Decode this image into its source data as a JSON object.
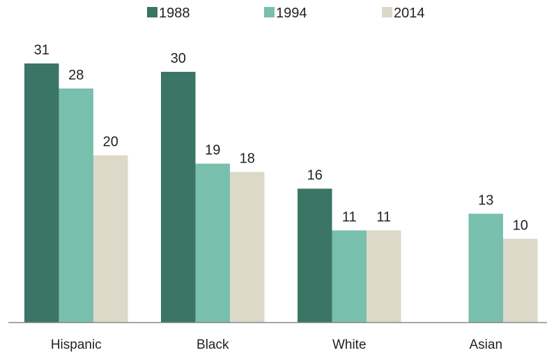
{
  "chart_data": {
    "type": "bar",
    "categories": [
      "Hispanic",
      "Black",
      "White",
      "Asian"
    ],
    "series": [
      {
        "name": "1988",
        "color": "#3a7566",
        "values": [
          31,
          30,
          16,
          null
        ]
      },
      {
        "name": "1994",
        "color": "#79bfae",
        "values": [
          28,
          19,
          11,
          13
        ]
      },
      {
        "name": "2014",
        "color": "#dcd9c8",
        "values": [
          20,
          18,
          11,
          10
        ]
      }
    ],
    "title": "",
    "xlabel": "",
    "ylabel": "",
    "ylim": [
      0,
      31
    ],
    "grid": false,
    "legend_position": "top-center",
    "data_labels": true
  }
}
